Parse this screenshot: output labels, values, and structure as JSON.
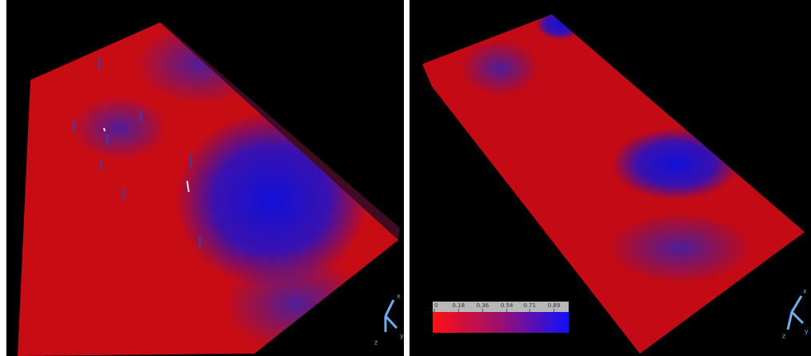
{
  "colorbar": {
    "ticks": [
      0,
      0.18,
      0.36,
      0.54,
      0.71,
      0.89
    ]
  },
  "left_triad": {
    "x": "x",
    "y": "y",
    "z": "z"
  },
  "right_triad": {
    "x": "x",
    "y": "y",
    "z": "z"
  }
}
